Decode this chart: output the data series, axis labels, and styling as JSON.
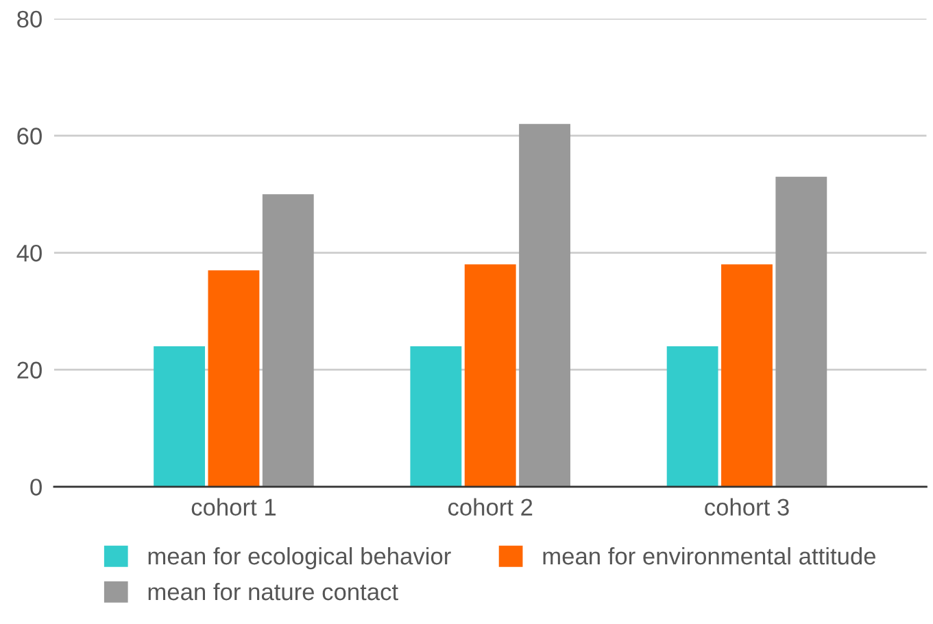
{
  "chart_data": {
    "type": "bar",
    "categories": [
      "cohort 1",
      "cohort 2",
      "cohort 3"
    ],
    "series": [
      {
        "name": "mean for ecological behavior",
        "color": "#33cccc",
        "values": [
          24,
          24,
          24
        ]
      },
      {
        "name": "mean for environmental attitude",
        "color": "#ff6600",
        "values": [
          37,
          38,
          38
        ]
      },
      {
        "name": "mean for nature contact",
        "color": "#999999",
        "values": [
          50,
          62,
          53
        ]
      }
    ],
    "ylim": [
      0,
      80
    ],
    "yticks": [
      0,
      20,
      40,
      60,
      80
    ],
    "grid": "y",
    "legend": "bottom"
  }
}
